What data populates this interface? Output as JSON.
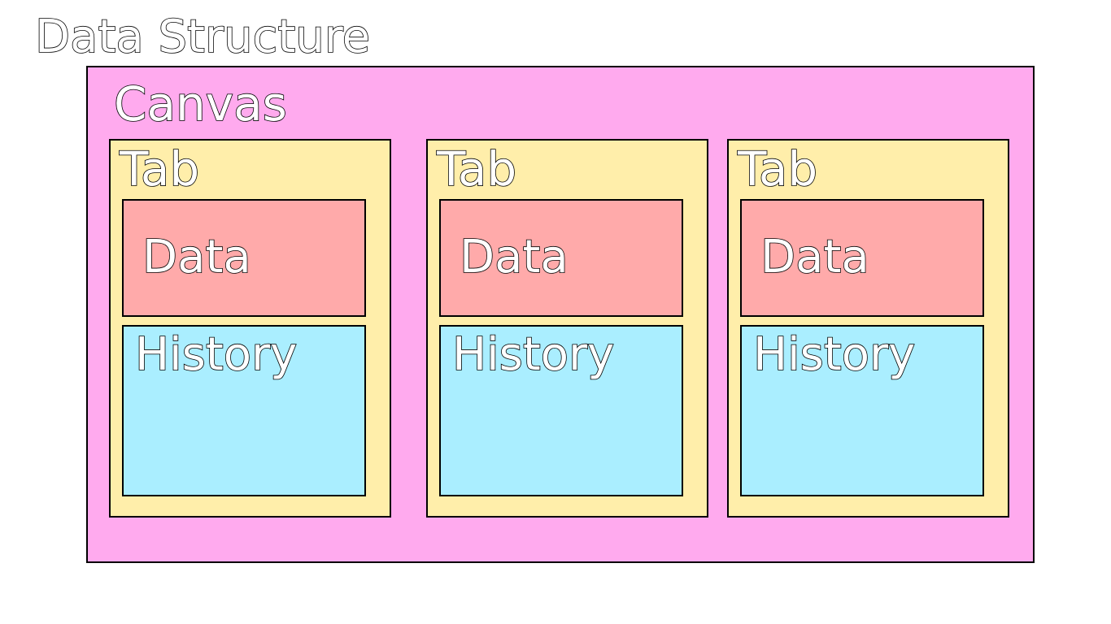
{
  "title": "Data Structure",
  "colors": {
    "canvas_fill": "#ffaaee",
    "tab_fill": "#ffeeaa",
    "data_fill": "#ffaaaa",
    "history_fill": "#aaeeff",
    "stroke": "#000000",
    "text_fill": "#ffffff"
  },
  "canvas": {
    "label": "Canvas",
    "tabs": [
      {
        "label": "Tab",
        "data_label": "Data",
        "history_label": "History"
      },
      {
        "label": "Tab",
        "data_label": "Data",
        "history_label": "History"
      },
      {
        "label": "Tab",
        "data_label": "Data",
        "history_label": "History"
      }
    ]
  }
}
